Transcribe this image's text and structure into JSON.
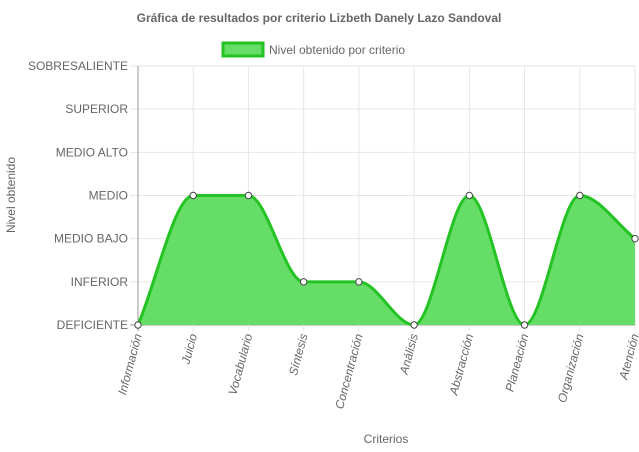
{
  "chart_data": {
    "type": "area",
    "title": "Gráfica de resultados por criterio Lizbeth Danely Lazo Sandoval",
    "xlabel": "Criterios",
    "ylabel": "Nivel obtenido",
    "y_levels": [
      "DEFICIENTE",
      "INFERIOR",
      "MEDIO BAJO",
      "MEDIO",
      "MEDIO ALTO",
      "SUPERIOR",
      "SOBRESALIENTE"
    ],
    "ylim": [
      0,
      6
    ],
    "categories": [
      "Información",
      "Juicio",
      "Vocabulario",
      "Síntesis",
      "Concentración",
      "Análisis",
      "Abstracción",
      "Planeación",
      "Organización",
      "Atención"
    ],
    "series": [
      {
        "name": "Nivel obtenido por criterio",
        "values": [
          0,
          3,
          3,
          1,
          1,
          0,
          3,
          0,
          3,
          2
        ]
      }
    ],
    "legend_position": "top",
    "grid": true,
    "colors": {
      "line": "#22c322",
      "fill": "#66dd66",
      "grid": "#e6e6e6",
      "axis": "#999999",
      "text": "#666666"
    }
  }
}
